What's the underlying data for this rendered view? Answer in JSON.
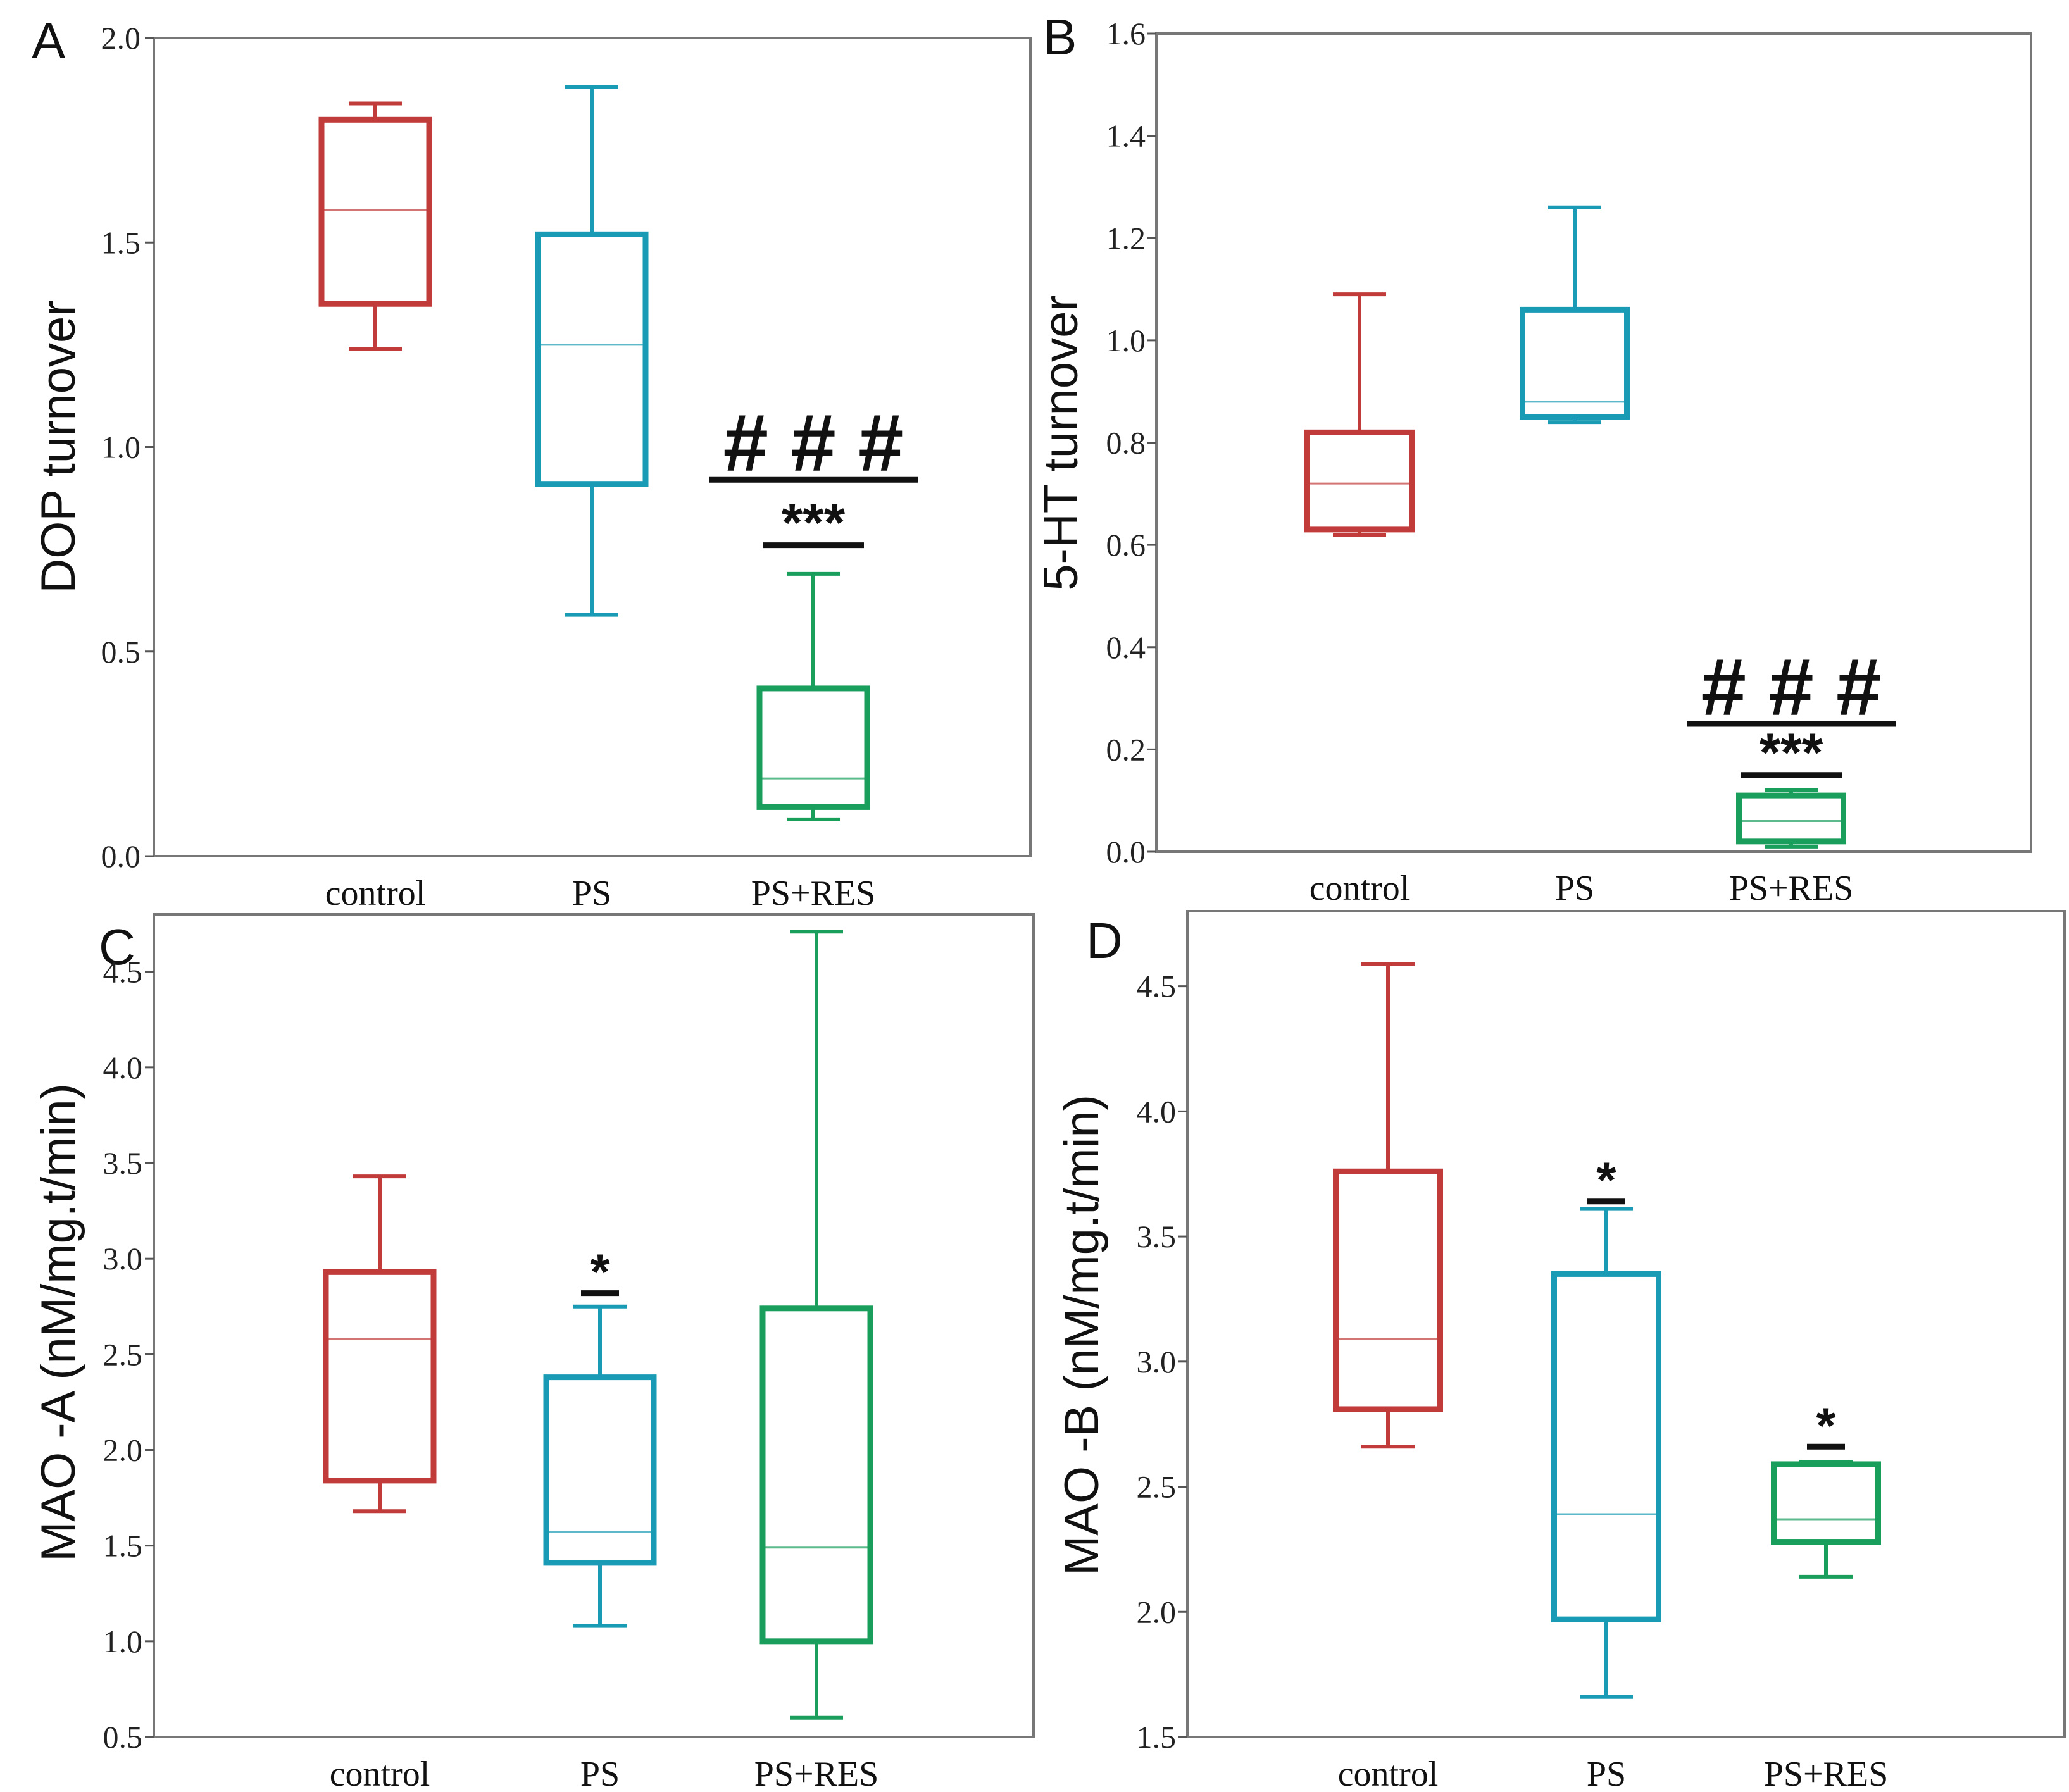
{
  "chart_data": [
    {
      "panel": "A",
      "type": "box",
      "ylabel": "DOP turnover",
      "ylim": [
        0,
        2.0
      ],
      "yticks": [
        "0.0",
        "0.5",
        "1.0",
        "1.5",
        "2.0"
      ],
      "categories": [
        "control",
        "PS",
        "PS+RES"
      ],
      "colors": [
        "#c23b3b",
        "#1a9bb5",
        "#1a9e5c"
      ],
      "boxes": [
        {
          "min": 1.24,
          "q1": 1.35,
          "median": 1.58,
          "q3": 1.8,
          "max": 1.84
        },
        {
          "min": 0.59,
          "q1": 0.91,
          "median": 1.25,
          "q3": 1.52,
          "max": 1.88
        },
        {
          "min": 0.09,
          "q1": 0.12,
          "median": 0.19,
          "q3": 0.41,
          "max": 0.69
        }
      ],
      "annotations": [
        {
          "category": 2,
          "stars": "***",
          "hash": "# # #",
          "star_y": 0.76,
          "hash_y": 0.92
        }
      ]
    },
    {
      "panel": "B",
      "type": "box",
      "ylabel": "5-HT turnover",
      "ylim": [
        0,
        1.6
      ],
      "yticks": [
        "0.0",
        "0.2",
        "0.4",
        "0.6",
        "0.8",
        "1.0",
        "1.2",
        "1.4",
        "1.6"
      ],
      "categories": [
        "control",
        "PS",
        "PS+RES"
      ],
      "colors": [
        "#c23b3b",
        "#1a9bb5",
        "#1a9e5c"
      ],
      "boxes": [
        {
          "min": 0.62,
          "q1": 0.63,
          "median": 0.72,
          "q3": 0.82,
          "max": 1.09
        },
        {
          "min": 0.84,
          "q1": 0.85,
          "median": 0.88,
          "q3": 1.06,
          "max": 1.26
        },
        {
          "min": 0.01,
          "q1": 0.02,
          "median": 0.06,
          "q3": 0.11,
          "max": 0.12
        }
      ],
      "annotations": [
        {
          "category": 2,
          "stars": "***",
          "hash": "# # #",
          "star_y": 0.15,
          "hash_y": 0.25
        }
      ]
    },
    {
      "panel": "C",
      "type": "box",
      "ylabel": "MAO -A (nM/mg.t/min)",
      "ylim": [
        0.5,
        4.8
      ],
      "yticks": [
        "0.5",
        "1.0",
        "1.5",
        "2.0",
        "2.5",
        "3.0",
        "3.5",
        "4.0",
        "4.5"
      ],
      "categories": [
        "control",
        "PS",
        "PS+RES"
      ],
      "colors": [
        "#c23b3b",
        "#1a9bb5",
        "#1a9e5c"
      ],
      "boxes": [
        {
          "min": 1.68,
          "q1": 1.84,
          "median": 2.58,
          "q3": 2.93,
          "max": 3.43
        },
        {
          "min": 1.08,
          "q1": 1.41,
          "median": 1.57,
          "q3": 2.38,
          "max": 2.75
        },
        {
          "min": 0.6,
          "q1": 1.0,
          "median": 1.49,
          "q3": 2.74,
          "max": 4.71
        }
      ],
      "annotations": [
        {
          "category": 1,
          "stars": "*",
          "hash": "",
          "star_y": 2.82,
          "hash_y": null
        }
      ]
    },
    {
      "panel": "D",
      "type": "box",
      "ylabel": "MAO -B (nM/mg.t/min)",
      "ylim": [
        1.5,
        4.8
      ],
      "yticks": [
        "1.5",
        "2.0",
        "2.5",
        "3.0",
        "3.5",
        "4.0",
        "4.5"
      ],
      "categories": [
        "control",
        "PS",
        "PS+RES"
      ],
      "colors": [
        "#c23b3b",
        "#1a9bb5",
        "#1a9e5c"
      ],
      "boxes": [
        {
          "min": 2.66,
          "q1": 2.81,
          "median": 3.09,
          "q3": 3.76,
          "max": 4.59
        },
        {
          "min": 1.66,
          "q1": 1.97,
          "median": 2.39,
          "q3": 3.35,
          "max": 3.61
        },
        {
          "min": 2.14,
          "q1": 2.28,
          "median": 2.37,
          "q3": 2.59,
          "max": 2.6
        }
      ],
      "annotations": [
        {
          "category": 1,
          "stars": "*",
          "hash": "",
          "star_y": 3.64,
          "hash_y": null
        },
        {
          "category": 2,
          "stars": "*",
          "hash": "",
          "star_y": 2.66,
          "hash_y": null
        }
      ]
    }
  ]
}
